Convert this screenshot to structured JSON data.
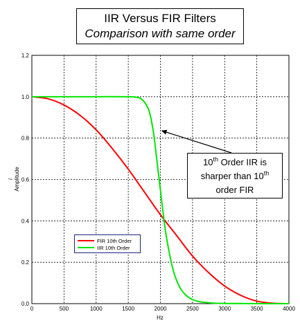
{
  "title": {
    "line1": "IIR Versus FIR Filters",
    "line2": "Comparison with same order"
  },
  "annotation": {
    "l1_pre": "10",
    "l1_sup": "th",
    "l1_post": " Order IIR is",
    "l2_pre": "sharper than 10",
    "l2_sup": "th",
    "l3": "order FIR"
  },
  "colors": {
    "fir": "#ff0000",
    "iir": "#00e600",
    "grid": "#000000",
    "legend_border": "#1a237e"
  },
  "chart_data": {
    "type": "line",
    "xlabel": "Hz",
    "ylabel": "Amplitude",
    "ylabel_mark": "/",
    "xlim": [
      0,
      4000
    ],
    "ylim": [
      0,
      1.2
    ],
    "xticks": [
      0,
      500,
      1000,
      1500,
      2000,
      2500,
      3000,
      3500,
      4000
    ],
    "yticks": [
      0.0,
      0.2,
      0.4,
      0.6,
      0.8,
      1.0,
      1.2
    ],
    "xtick_labels": [
      "0",
      "500",
      "1000",
      "1500",
      "2000",
      "2500",
      "3000",
      "3500",
      "4000"
    ],
    "ytick_labels": [
      "0.0",
      "0.2",
      "0.4",
      "0.6",
      "0.8",
      "1.0",
      "1.2"
    ],
    "grid": true,
    "legend_position": "lower-left",
    "series": [
      {
        "name": "FIR 10th Order",
        "x": [
          0,
          250,
          500,
          750,
          1000,
          1250,
          1500,
          1750,
          2000,
          2250,
          2500,
          2750,
          3000,
          3250,
          3500,
          3750,
          4000
        ],
        "y": [
          1.0,
          0.99,
          0.96,
          0.91,
          0.84,
          0.75,
          0.65,
          0.54,
          0.43,
          0.33,
          0.23,
          0.15,
          0.085,
          0.04,
          0.012,
          0.002,
          0.0
        ]
      },
      {
        "name": "IIR 10th Order",
        "x": [
          0,
          500,
          1000,
          1500,
          1600,
          1700,
          1800,
          1850,
          1900,
          1950,
          2000,
          2050,
          2100,
          2200,
          2300,
          2400,
          2500,
          2600,
          2800,
          3000,
          3500,
          4000
        ],
        "y": [
          1.0,
          1.0,
          1.0,
          1.0,
          0.998,
          0.99,
          0.95,
          0.9,
          0.81,
          0.68,
          0.55,
          0.42,
          0.31,
          0.16,
          0.08,
          0.04,
          0.02,
          0.01,
          0.003,
          0.001,
          0.0,
          0.0
        ]
      }
    ],
    "annotation_target": {
      "x": 1990,
      "y": 0.84
    }
  }
}
